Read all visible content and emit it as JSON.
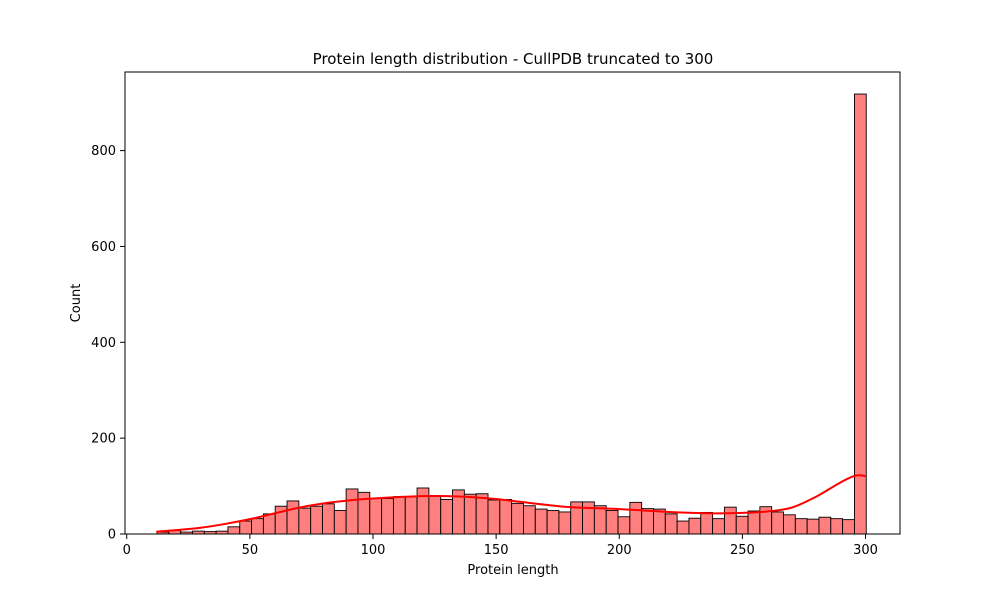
{
  "chart_data": {
    "type": "bar",
    "title": "Protein length distribution - CullPDB truncated to 300",
    "xlabel": "Protein length",
    "ylabel": "Count",
    "xlim": [
      -0.7,
      314
    ],
    "ylim": [
      0,
      964
    ],
    "xticks": [
      0,
      50,
      100,
      150,
      200,
      250,
      300
    ],
    "yticks": [
      0,
      200,
      400,
      600,
      800
    ],
    "grid": false,
    "bar_color": "#ff7f7f",
    "edge_color": "#000000",
    "kde_color": "#ff0000",
    "bin_start": 12.3,
    "bin_width": 4.8,
    "counts": [
      4,
      7,
      4,
      6,
      5,
      6,
      15,
      27,
      32,
      42,
      58,
      69,
      54,
      58,
      63,
      49,
      94,
      87,
      74,
      74,
      78,
      78,
      96,
      80,
      72,
      92,
      83,
      84,
      71,
      72,
      64,
      59,
      52,
      49,
      46,
      67,
      67,
      59,
      49,
      36,
      66,
      53,
      52,
      42,
      27,
      33,
      45,
      32,
      56,
      37,
      48,
      57,
      46,
      40,
      32,
      31,
      35,
      32,
      30,
      918
    ],
    "kde": {
      "x": [
        12,
        20,
        30,
        40,
        50,
        60,
        70,
        80,
        90,
        100,
        110,
        120,
        130,
        140,
        150,
        160,
        170,
        180,
        190,
        200,
        210,
        220,
        230,
        240,
        250,
        260,
        270,
        280,
        290,
        296,
        300
      ],
      "y": [
        5,
        8,
        13,
        21,
        31,
        43,
        55,
        64,
        70,
        74,
        77,
        79,
        79,
        77,
        73,
        67,
        61,
        56,
        54,
        52,
        49,
        46,
        44,
        43,
        44,
        47,
        55,
        78,
        108,
        122,
        121
      ]
    }
  }
}
